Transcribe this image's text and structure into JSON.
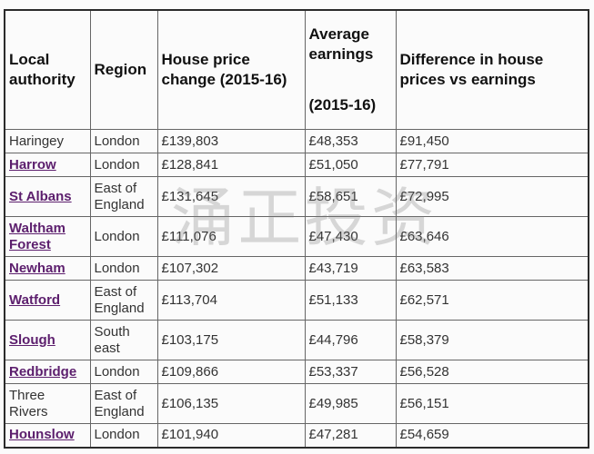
{
  "table": {
    "headers": {
      "local_authority": "Local authority",
      "region": "Region",
      "house_price_change": "House price change (2015-16)",
      "average_earnings": "Average earnings",
      "average_earnings_period": "(2015-16)",
      "difference": "Difference in house prices vs earnings"
    },
    "rows": [
      {
        "authority": "Haringey",
        "link": false,
        "region": "London",
        "price_change": "£139,803",
        "earnings": "£48,353",
        "difference": "£91,450"
      },
      {
        "authority": "Harrow",
        "link": true,
        "region": "London",
        "price_change": "£128,841",
        "earnings": "£51,050",
        "difference": "£77,791"
      },
      {
        "authority": "St Albans",
        "link": true,
        "region": "East of England",
        "price_change": "£131,645",
        "earnings": "£58,651",
        "difference": "£72,995"
      },
      {
        "authority": "Waltham Forest",
        "link": true,
        "region": "London",
        "price_change": "£111,076",
        "earnings": "£47,430",
        "difference": "£63,646"
      },
      {
        "authority": "Newham",
        "link": true,
        "region": "London",
        "price_change": "£107,302",
        "earnings": "£43,719",
        "difference": "£63,583"
      },
      {
        "authority": "Watford",
        "link": true,
        "region": "East of England",
        "price_change": "£113,704",
        "earnings": "£51,133",
        "difference": "£62,571"
      },
      {
        "authority": "Slough",
        "link": true,
        "region": "South east",
        "price_change": "£103,175",
        "earnings": "£44,796",
        "difference": "£58,379"
      },
      {
        "authority": "Redbridge",
        "link": true,
        "region": "London",
        "price_change": "£109,866",
        "earnings": "£53,337",
        "difference": "£56,528"
      },
      {
        "authority": "Three Rivers",
        "link": false,
        "region": "East of England",
        "price_change": "£106,135",
        "earnings": "£49,985",
        "difference": "£56,151"
      },
      {
        "authority": "Hounslow",
        "link": true,
        "region": "London",
        "price_change": "£101,940",
        "earnings": "£47,281",
        "difference": "£54,659"
      }
    ]
  },
  "watermark": {
    "text": "涌正投资"
  },
  "colors": {
    "link": "#5c1e6d",
    "text": "#333333",
    "border": "#666666"
  }
}
